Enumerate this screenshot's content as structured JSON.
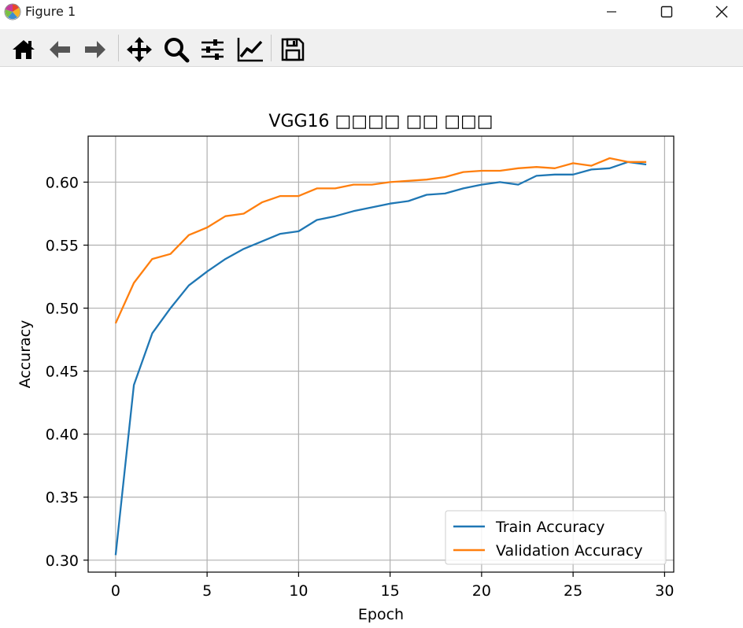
{
  "window": {
    "title": "Figure 1",
    "controls": [
      "minimize-icon",
      "maximize-icon",
      "close-icon"
    ]
  },
  "toolbar": {
    "buttons": [
      {
        "name": "home",
        "icon": "home-icon"
      },
      {
        "name": "back",
        "icon": "arrow-left-icon"
      },
      {
        "name": "forward",
        "icon": "arrow-right-icon"
      },
      {
        "name": "pan",
        "icon": "move-icon"
      },
      {
        "name": "zoom",
        "icon": "magnifier-icon"
      },
      {
        "name": "configure-subplots",
        "icon": "sliders-icon"
      },
      {
        "name": "edit-axis",
        "icon": "line-chart-icon"
      },
      {
        "name": "save",
        "icon": "floppy-disk-icon"
      }
    ]
  },
  "chart_data": {
    "type": "line",
    "title": "VGG16 □□□□ □□ □□□",
    "xlabel": "Epoch",
    "ylabel": "Accuracy",
    "xlim": [
      -1.5,
      30.5
    ],
    "ylim": [
      0.2905,
      0.6365
    ],
    "xticks": [
      0,
      5,
      10,
      15,
      20,
      25,
      30
    ],
    "xtick_labels": [
      "0",
      "5",
      "10",
      "15",
      "20",
      "25",
      "30"
    ],
    "yticks": [
      0.3,
      0.35,
      0.4,
      0.45,
      0.5,
      0.55,
      0.6
    ],
    "ytick_labels": [
      "0.30",
      "0.35",
      "0.40",
      "0.45",
      "0.50",
      "0.55",
      "0.60"
    ],
    "grid": true,
    "legend_position": "lower-right",
    "x": [
      0,
      1,
      2,
      3,
      4,
      5,
      6,
      7,
      8,
      9,
      10,
      11,
      12,
      13,
      14,
      15,
      16,
      17,
      18,
      19,
      20,
      21,
      22,
      23,
      24,
      25,
      26,
      27,
      28,
      29
    ],
    "series": [
      {
        "name": "Train Accuracy",
        "color": "#1f77b4",
        "values": [
          0.304,
          0.439,
          0.48,
          0.5,
          0.518,
          0.529,
          0.539,
          0.547,
          0.553,
          0.559,
          0.561,
          0.57,
          0.573,
          0.577,
          0.58,
          0.583,
          0.585,
          0.59,
          0.591,
          0.595,
          0.598,
          0.6,
          0.598,
          0.605,
          0.606,
          0.606,
          0.61,
          0.611,
          0.616,
          0.614
        ]
      },
      {
        "name": "Validation Accuracy",
        "color": "#ff7f0e",
        "values": [
          0.488,
          0.52,
          0.539,
          0.543,
          0.558,
          0.564,
          0.573,
          0.575,
          0.584,
          0.589,
          0.589,
          0.595,
          0.595,
          0.598,
          0.598,
          0.6,
          0.601,
          0.602,
          0.604,
          0.608,
          0.609,
          0.609,
          0.611,
          0.612,
          0.611,
          0.615,
          0.613,
          0.619,
          0.616,
          0.616
        ]
      }
    ]
  }
}
